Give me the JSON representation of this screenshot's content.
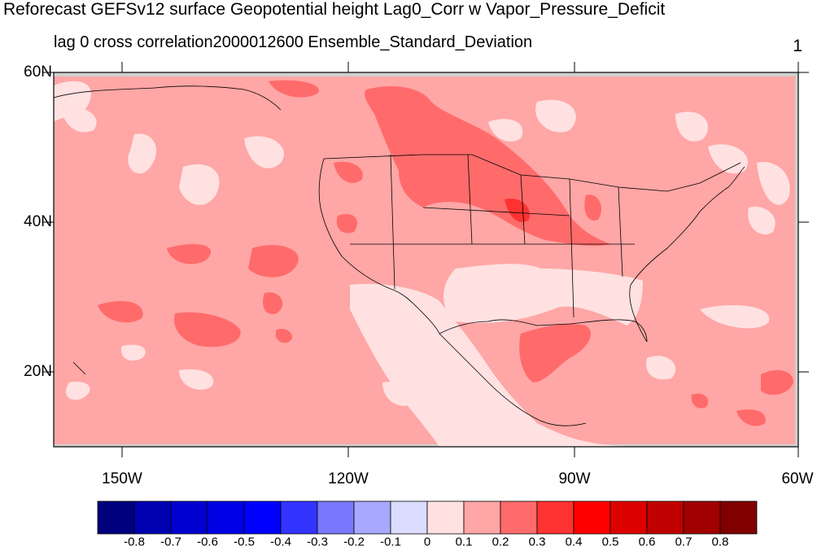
{
  "title": "Reforecast GEFSv12 surface Geopotential height Lag0_Corr w Vapor_Pressure_Deficit",
  "subtitle": "lag 0 cross correlation2000012600 Ensemble_Standard_Deviation",
  "corner_label": "1",
  "lat_labels": [
    "60N",
    "40N",
    "20N"
  ],
  "lon_labels": [
    "150W",
    "120W",
    "90W",
    "60W"
  ],
  "colorbar": {
    "colors": [
      "#00007f",
      "#0000b0",
      "#0000d0",
      "#0000e6",
      "#0000ff",
      "#3434ff",
      "#7878ff",
      "#a8a8ff",
      "#dcdcff",
      "#ffe1e1",
      "#ffa6a6",
      "#ff6b6b",
      "#ff3232",
      "#ff0000",
      "#dc0000",
      "#c00000",
      "#a00000",
      "#800000"
    ],
    "labels": [
      "-0.8",
      "-0.7",
      "-0.6",
      "-0.5",
      "-0.4",
      "-0.3",
      "-0.2",
      "-0.1",
      "0",
      "0.1",
      "0.2",
      "0.3",
      "0.4",
      "0.5",
      "0.6",
      "0.7",
      "0.8"
    ]
  },
  "field_colors": {
    "background": "#ffa6a6",
    "light": "#ffe1e1",
    "medium": "#ff6b6b",
    "strong": "#ff3232"
  }
}
